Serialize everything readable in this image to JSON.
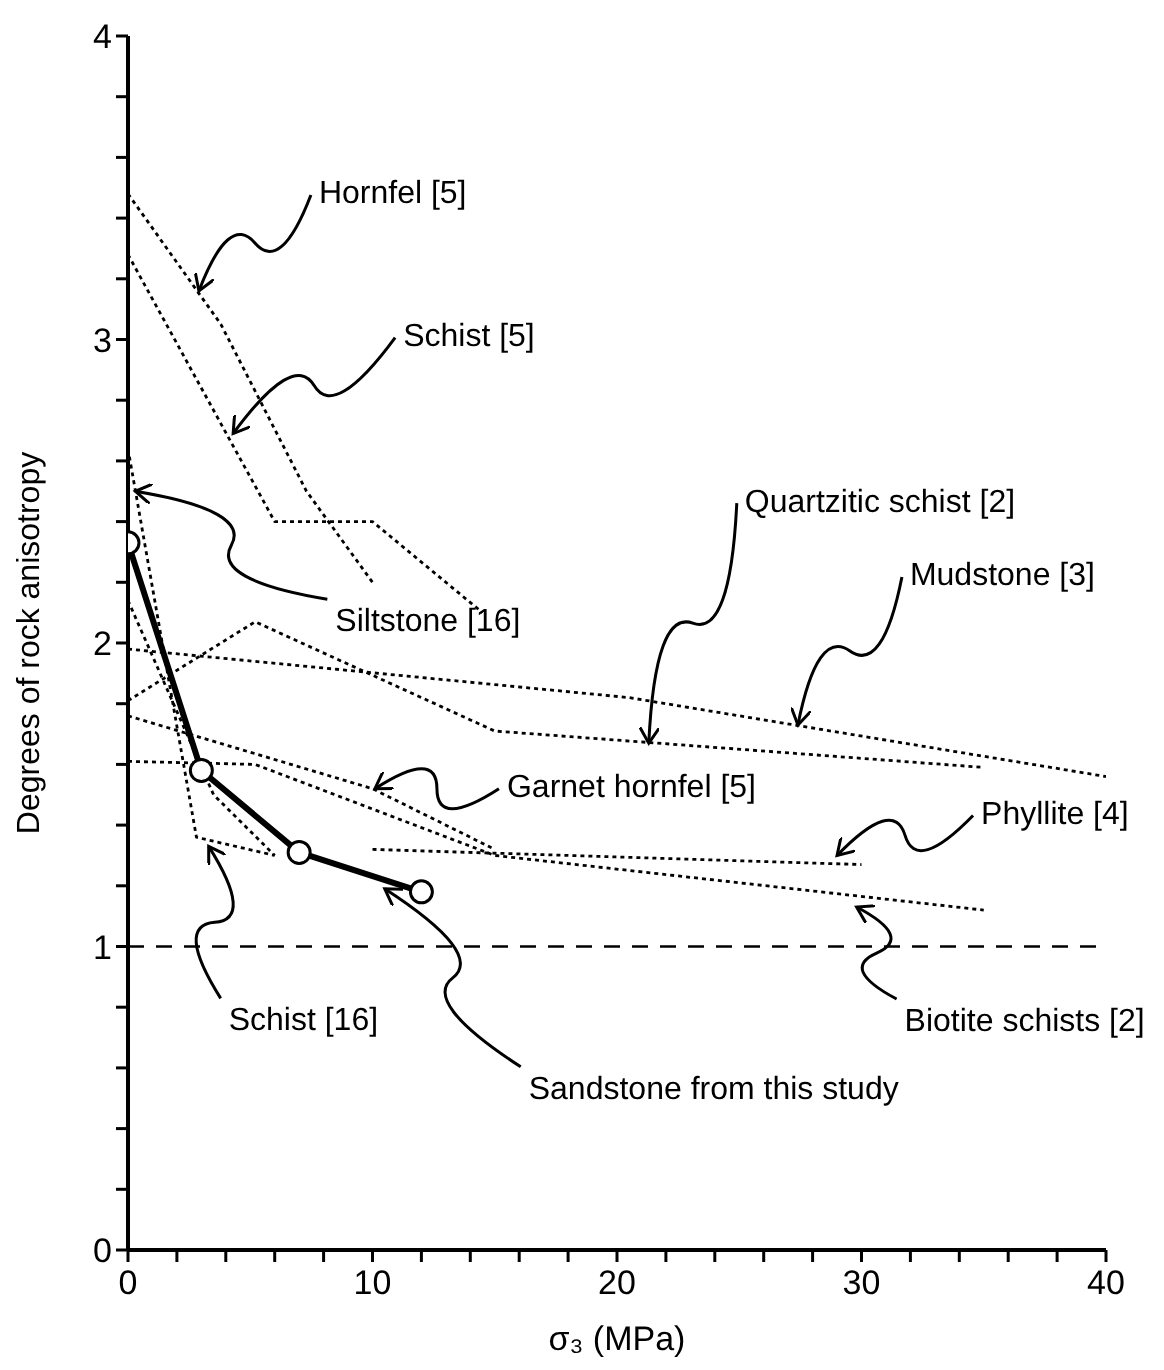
{
  "chart_data": {
    "type": "line",
    "xlabel": "σ₃ (MPa)",
    "ylabel": "Degrees of rock anisotropy",
    "xlim": [
      0,
      40
    ],
    "ylim": [
      0,
      4
    ],
    "xticks": [
      0,
      {
        "value": 2,
        "label": null
      },
      {
        "value": 4,
        "label": null
      },
      {
        "value": 6,
        "label": null
      },
      {
        "value": 8,
        "label": null
      },
      10,
      {
        "value": 12,
        "label": null
      },
      {
        "value": 14,
        "label": null
      },
      {
        "value": 16,
        "label": null
      },
      {
        "value": 18,
        "label": null
      },
      20,
      {
        "value": 22,
        "label": null
      },
      {
        "value": 24,
        "label": null
      },
      {
        "value": 26,
        "label": null
      },
      {
        "value": 28,
        "label": null
      },
      30,
      {
        "value": 32,
        "label": null
      },
      {
        "value": 34,
        "label": null
      },
      {
        "value": 36,
        "label": null
      },
      {
        "value": 38,
        "label": null
      },
      40
    ],
    "yticks": [
      0,
      {
        "value": 0.2,
        "label": null
      },
      {
        "value": 0.4,
        "label": null
      },
      {
        "value": 0.6,
        "label": null
      },
      {
        "value": 0.8,
        "label": null
      },
      1,
      {
        "value": 1.2,
        "label": null
      },
      {
        "value": 1.4,
        "label": null
      },
      {
        "value": 1.6,
        "label": null
      },
      {
        "value": 1.8,
        "label": null
      },
      2,
      {
        "value": 2.2,
        "label": null
      },
      {
        "value": 2.4,
        "label": null
      },
      {
        "value": 2.6,
        "label": null
      },
      {
        "value": 2.8,
        "label": null
      },
      3,
      {
        "value": 3.2,
        "label": null
      },
      {
        "value": 3.4,
        "label": null
      },
      {
        "value": 3.6,
        "label": null
      },
      {
        "value": 3.8,
        "label": null
      },
      4
    ],
    "grid": false,
    "legend": false,
    "series": [
      {
        "color": "#000000",
        "line_style": "dotted",
        "marker": "none",
        "x": [
          0,
          3.8,
          7.3,
          10
        ],
        "values": [
          3.48,
          3.05,
          2.5,
          2.2
        ]
      },
      {
        "color": "#000000",
        "line_style": "dotted",
        "marker": "none",
        "x": [
          0,
          6,
          10,
          14.5
        ],
        "values": [
          3.28,
          2.4,
          2.4,
          2.1
        ]
      },
      {
        "color": "#000000",
        "line_style": "dotted",
        "marker": "none",
        "x": [
          0,
          2.8,
          6
        ],
        "values": [
          2.64,
          1.36,
          1.3
        ]
      },
      {
        "color": "#000000",
        "line_style": "dotted",
        "marker": "none",
        "x": [
          0,
          3.5,
          6
        ],
        "values": [
          2.14,
          1.5,
          1.3
        ]
      },
      {
        "color": "#000000",
        "line_style": "dotted",
        "marker": "none",
        "x": [
          0,
          20.5,
          40
        ],
        "values": [
          1.98,
          1.82,
          1.56
        ]
      },
      {
        "color": "#000000",
        "line_style": "dotted",
        "marker": "none",
        "x": [
          0,
          5.2,
          15,
          35
        ],
        "values": [
          1.81,
          2.07,
          1.71,
          1.59
        ]
      },
      {
        "color": "#000000",
        "line_style": "dotted",
        "marker": "none",
        "x": [
          0,
          10,
          15
        ],
        "values": [
          1.76,
          1.52,
          1.32
        ]
      },
      {
        "color": "#000000",
        "line_style": "dotted",
        "marker": "none",
        "x": [
          0,
          5.2,
          15,
          35
        ],
        "values": [
          1.61,
          1.6,
          1.3,
          1.12
        ]
      },
      {
        "color": "#000000",
        "line_style": "dotted",
        "marker": "none",
        "x": [
          10,
          30
        ],
        "values": [
          1.32,
          1.27
        ]
      },
      {
        "color": "#000000",
        "line_style": "solid",
        "marker": "circle",
        "x": [
          0,
          3,
          7,
          12
        ],
        "values": [
          2.33,
          1.58,
          1.31,
          1.18
        ]
      }
    ],
    "ref_lines": [
      {
        "axis": "y",
        "value": 1,
        "color": "#000000",
        "line_style": "dashed"
      }
    ],
    "annotations": [
      {
        "text": "Hornfel [5]",
        "x": 2.9,
        "y": 3.16
      },
      {
        "text": "Schist [5]",
        "x": 4.3,
        "y": 2.69
      },
      {
        "text": "Siltstone [16]",
        "x": 0.3,
        "y": 2.5
      },
      {
        "text": "Quartzitic schist [2]",
        "x": 21.3,
        "y": 1.67
      },
      {
        "text": "Mudstone [3]",
        "x": 27.4,
        "y": 1.73
      },
      {
        "text": "Garnet hornfel [5]",
        "x": 10.1,
        "y": 1.52
      },
      {
        "text": "Phyllite [4]",
        "x": 29,
        "y": 1.3
      },
      {
        "text": "Biotite schists [2]",
        "x": 29.8,
        "y": 1.13
      },
      {
        "text": "Schist [16]",
        "x": 3.3,
        "y": 1.33
      },
      {
        "text": "Sandstone from this study",
        "x": 10.5,
        "y": 1.19
      }
    ]
  }
}
